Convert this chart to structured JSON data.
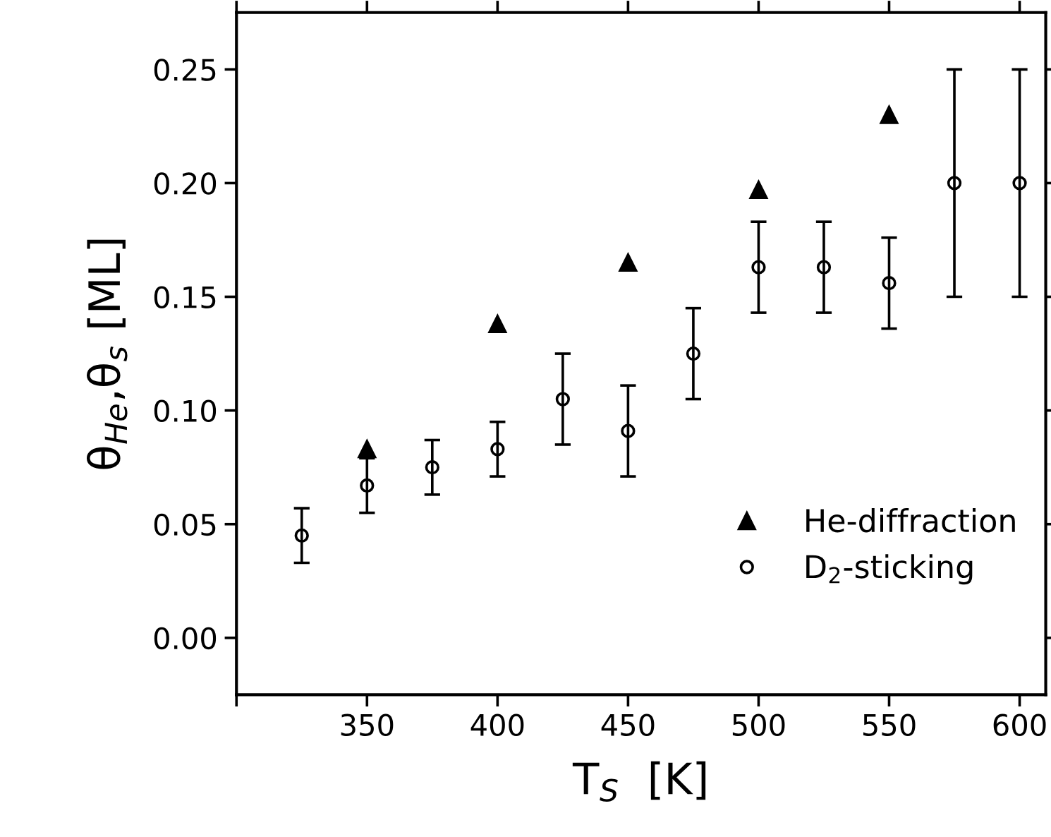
{
  "chart_data": {
    "type": "scatter",
    "xlabel": "T$_{S}$  [K]",
    "ylabel": "θ$_{He}$,θ$_{s}$ [ML]",
    "xlim": [
      300,
      610
    ],
    "xticks": [
      {
        "value": 300,
        "label": null
      },
      350,
      400,
      450,
      500,
      550,
      600
    ],
    "ylim": [
      -0.025,
      0.275
    ],
    "yticks": [
      {
        "value": 0,
        "label": "0.00"
      },
      {
        "value": 0.05,
        "label": "0.05"
      },
      {
        "value": 0.1,
        "label": "0.10"
      },
      {
        "value": 0.15,
        "label": "0.15"
      },
      {
        "value": 0.2,
        "label": "0.20"
      },
      {
        "value": 0.25,
        "label": "0.25"
      }
    ],
    "series": [
      {
        "name": "He-diffraction",
        "color": "#000000",
        "marker": "triangle",
        "x": [
          350,
          400,
          450,
          500,
          550
        ],
        "values": [
          0.083,
          0.138,
          0.165,
          0.197,
          0.23
        ]
      },
      {
        "name": "D$_{2}$-sticking",
        "color": "#000000",
        "marker": "circle",
        "x": [
          325,
          350,
          375,
          400,
          425,
          450,
          475,
          500,
          525,
          550,
          575,
          600
        ],
        "values": [
          0.045,
          0.067,
          0.075,
          0.083,
          0.105,
          0.091,
          0.125,
          0.163,
          0.163,
          0.156,
          0.2,
          0.2
        ],
        "errors": [
          0.012,
          0.012,
          0.012,
          0.012,
          0.02,
          0.02,
          0.02,
          0.02,
          0.02,
          0.02,
          0.05,
          0.05
        ]
      }
    ],
    "legend": "bottom right",
    "grid": false
  }
}
